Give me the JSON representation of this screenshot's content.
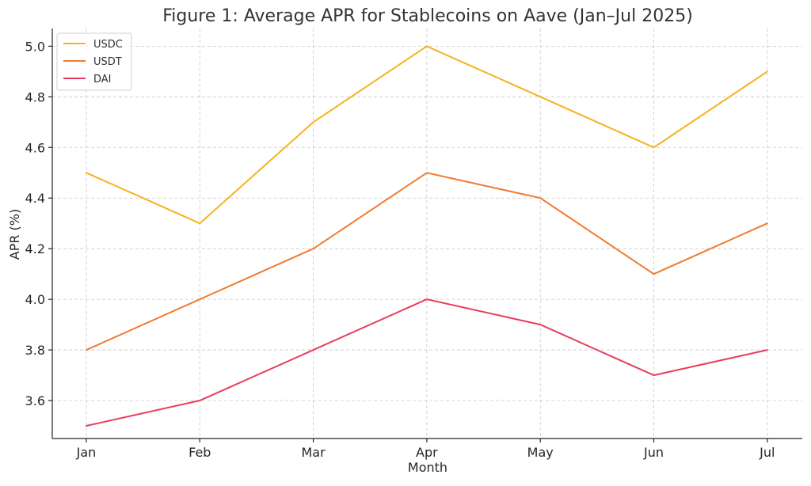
{
  "chart_data": {
    "type": "line",
    "title": "Figure 1: Average APR for Stablecoins on Aave (Jan–Jul 2025)",
    "xlabel": "Month",
    "ylabel": "APR (%)",
    "categories": [
      "Jan",
      "Feb",
      "Mar",
      "Apr",
      "May",
      "Jun",
      "Jul"
    ],
    "ylim": [
      3.45,
      5.07
    ],
    "yticks": [
      "3.6",
      "3.8",
      "4.0",
      "4.2",
      "4.4",
      "4.6",
      "4.8",
      "5.0"
    ],
    "grid": true,
    "legend_position": "top-left",
    "series": [
      {
        "name": "USDC",
        "color": "#f6b21c",
        "values": [
          4.5,
          4.3,
          4.7,
          5.0,
          4.8,
          4.6,
          4.9
        ]
      },
      {
        "name": "USDT",
        "color": "#ef7b2d",
        "values": [
          3.8,
          4.0,
          4.2,
          4.5,
          4.4,
          4.1,
          4.3
        ]
      },
      {
        "name": "DAI",
        "color": "#e83e5c",
        "values": [
          3.5,
          3.6,
          3.8,
          4.0,
          3.9,
          3.7,
          3.8
        ]
      }
    ]
  }
}
